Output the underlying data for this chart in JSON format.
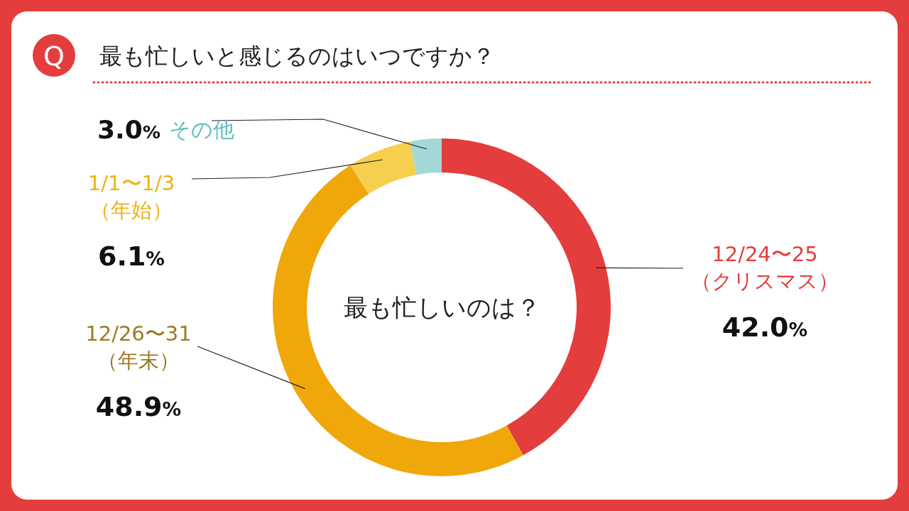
{
  "chart_data": {
    "type": "donut",
    "title": "最も忙しいと感じるのはいつですか？",
    "categories": [
      "12/24〜25（クリスマス）",
      "12/26〜31（年末）",
      "1/1〜1/3（年始）",
      "その他"
    ],
    "values": [
      42.0,
      48.9,
      6.1,
      3.0
    ],
    "colors": [
      "#e43d3d",
      "#f0a70a",
      "#f6cf4f",
      "#a3d8d6"
    ],
    "value_labels": [
      "42.0%",
      "48.9%",
      "6.1%",
      "3.0%"
    ],
    "annotations": [
      "Q",
      "最も忙しいのは？"
    ]
  }
}
